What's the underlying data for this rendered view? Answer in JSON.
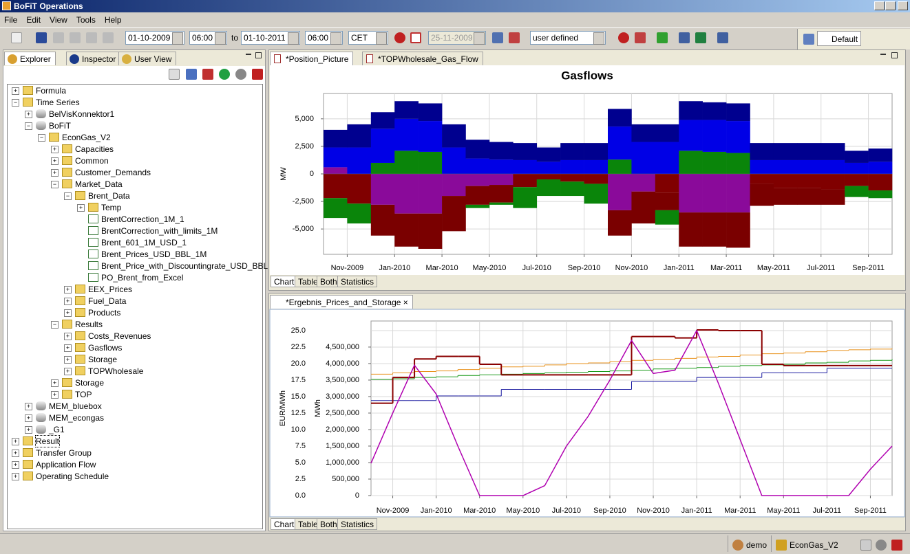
{
  "window": {
    "title": "BoFiT Operations"
  },
  "menu": [
    "File",
    "Edit",
    "View",
    "Tools",
    "Help"
  ],
  "toolbar": {
    "from_date": "01-10-2009",
    "from_time": "06:00",
    "to": "to",
    "to_date": "01-10-2011",
    "to_time": "06:00",
    "timezone": "CET",
    "date": "25-11-2009",
    "mode": "user defined",
    "perspective": "Default"
  },
  "left_tabs": [
    "Explorer",
    "Inspector",
    "User View"
  ],
  "tree": [
    "Formula",
    "Time Series",
    "BelVisKonnektor1",
    "BoFiT",
    "EconGas_V2",
    "Capacities",
    "Common",
    "Customer_Demands",
    "Market_Data",
    "Brent_Data",
    "Temp",
    "BrentCorrection_1M_1",
    "BrentCorrection_with_limits_1M",
    "Brent_601_1M_USD_1",
    "Brent_Prices_USD_BBL_1M",
    "Brent_Price_with_Discountingrate_USD_BBL",
    "PO_Brent_from_Excel",
    "EEX_Prices",
    "Fuel_Data",
    "Products",
    "Results",
    "Costs_Revenues",
    "Gasflows",
    "Storage",
    "TOPWholesale",
    "Storage",
    "TOP",
    "MEM_bluebox",
    "MEM_econgas",
    "_G1",
    "Result",
    "Transfer Group",
    "Application Flow",
    "Operating Schedule"
  ],
  "editor_tabs": [
    "*Position_Picture",
    "*TOPWholesale_Gas_Flow"
  ],
  "view_tabs": [
    "Chart",
    "Table",
    "Both",
    "Statistics"
  ],
  "bottom_tab": "*Ergebnis_Prices_and_Storage",
  "status": {
    "user": "demo",
    "project": "EconGas_V2"
  },
  "gasflow_chart": {
    "type": "stacked-area",
    "title": "Gasflows",
    "y_label": "MW",
    "grid": true,
    "categories": [
      null,
      "Nov-2009",
      null,
      "Jan-2010",
      null,
      "Mar-2010",
      null,
      "May-2010",
      null,
      "Jul-2010",
      null,
      "Sep-2010",
      null,
      "Nov-2010",
      null,
      "Jan-2011",
      null,
      "Mar-2011",
      null,
      "May-2011",
      null,
      "Jul-2011",
      null,
      "Sep-2011"
    ],
    "ylim": [
      -7300,
      7300
    ],
    "yticks": [
      {
        "value": 5000,
        "label": "5,000"
      },
      {
        "value": 2500,
        "label": "2,500"
      },
      0,
      {
        "value": -2500,
        "label": "-2,500"
      },
      {
        "value": -5000,
        "label": "-5,000"
      }
    ],
    "series": [
      {
        "color": "#8a0a9a",
        "values": [
          600,
          0,
          0,
          0,
          0,
          0,
          0,
          0,
          0,
          0,
          0,
          0,
          0,
          0,
          0,
          0,
          0,
          0,
          0,
          0,
          0,
          0,
          0,
          0
        ]
      },
      {
        "color": "#0a850a",
        "values": [
          0,
          0,
          1000,
          2100,
          2000,
          0,
          0,
          0,
          0,
          0,
          0,
          0,
          1300,
          0,
          0,
          2100,
          2000,
          1900,
          0,
          0,
          0,
          0,
          0,
          0
        ]
      },
      {
        "color": "#0000e6",
        "values": [
          1800,
          2400,
          3100,
          2900,
          2800,
          2400,
          1400,
          1300,
          1250,
          1100,
          1250,
          1250,
          3000,
          2900,
          2900,
          2800,
          2900,
          2900,
          1250,
          1250,
          1250,
          1250,
          1000,
          1100
        ]
      },
      {
        "color": "#00008f",
        "values": [
          1600,
          2100,
          1500,
          1600,
          1600,
          2100,
          1700,
          1600,
          1550,
          1300,
          1550,
          1550,
          1600,
          1600,
          1600,
          1700,
          1600,
          1600,
          1550,
          1550,
          1550,
          1550,
          1100,
          1200
        ]
      },
      {
        "color": "#800000",
        "values": [
          -2200,
          -2700,
          0,
          0,
          0,
          0,
          0,
          0,
          -1200,
          -500,
          -700,
          -900,
          0,
          0,
          -1700,
          0,
          0,
          0,
          -900,
          -1300,
          -1300,
          -1400,
          -1100,
          -1500
        ]
      },
      {
        "color": "#8a0a9a",
        "values": [
          0,
          0,
          -2800,
          -3600,
          -3600,
          -2000,
          -1100,
          -1000,
          0,
          0,
          0,
          0,
          -3300,
          -1600,
          0,
          -3500,
          -3500,
          -3500,
          0,
          0,
          0,
          0,
          0,
          0
        ]
      },
      {
        "color": "#7a0000",
        "values": [
          0,
          0,
          -2800,
          -3000,
          -3200,
          -3200,
          -1700,
          -1600,
          0,
          0,
          0,
          0,
          -2300,
          -2900,
          -1600,
          -3100,
          -3100,
          -3200,
          -2000,
          -1500,
          -1500,
          -1400,
          0,
          0
        ]
      },
      {
        "color": "#0a850a",
        "values": [
          -1800,
          -1800,
          0,
          0,
          0,
          0,
          -300,
          -200,
          -1900,
          -1500,
          -1300,
          -1800,
          0,
          0,
          -1300,
          0,
          0,
          0,
          0,
          0,
          0,
          0,
          -1000,
          -700
        ]
      }
    ]
  },
  "prices_chart": {
    "type": "line",
    "y_label": "EUR/MWh",
    "y2_label": "MWh",
    "grid": true,
    "categories": [
      null,
      "Nov-2009",
      null,
      "Jan-2010",
      null,
      "Mar-2010",
      null,
      "May-2010",
      null,
      "Jul-2010",
      null,
      "Sep-2010",
      null,
      "Nov-2010",
      null,
      "Jan-2011",
      null,
      "Mar-2011",
      null,
      "May-2011",
      null,
      "Jul-2011",
      null,
      "Sep-2011",
      null
    ],
    "ylim": [
      0,
      26.46
    ],
    "yticks": [
      {
        "value": 0,
        "label": "0.0"
      },
      {
        "value": 2.5,
        "label": "2.5"
      },
      {
        "value": 5,
        "label": "5.0"
      },
      {
        "value": 7.5,
        "label": "7.5"
      },
      {
        "value": 10,
        "label": "10.0"
      },
      {
        "value": 12.5,
        "label": "12.5"
      },
      {
        "value": 15,
        "label": "15.0"
      },
      {
        "value": 17.5,
        "label": "17.5"
      },
      {
        "value": 20,
        "label": "20.0"
      },
      {
        "value": 22.5,
        "label": "22.5"
      },
      {
        "value": 25,
        "label": "25.0"
      }
    ],
    "y2lim": [
      0,
      5290000
    ],
    "y2ticks": [
      0,
      {
        "value": 500000,
        "label": "500,000"
      },
      {
        "value": 1000000,
        "label": "1,000,000"
      },
      {
        "value": 1500000,
        "label": "1,500,000"
      },
      {
        "value": 2000000,
        "label": "2,000,000"
      },
      {
        "value": 2500000,
        "label": "2,500,000"
      },
      {
        "value": 3000000,
        "label": "3,000,000"
      },
      {
        "value": 3500000,
        "label": "3,500,000"
      },
      {
        "value": 4000000,
        "label": "4,000,000"
      },
      {
        "value": 4500000,
        "label": "4,500,000"
      }
    ],
    "series": [
      {
        "color": "#e8901a",
        "step": true,
        "values": [
          18.4,
          18.6,
          18.8,
          18.9,
          19.1,
          19.3,
          19.5,
          19.6,
          19.8,
          20.0,
          20.1,
          20.3,
          20.5,
          20.6,
          20.8,
          21.0,
          21.1,
          21.3,
          21.5,
          21.6,
          21.8,
          22.0,
          22.1,
          22.2,
          22.3
        ]
      },
      {
        "color": "#1a9a1a",
        "step": true,
        "values": [
          17.6,
          17.7,
          17.9,
          18.0,
          18.2,
          18.3,
          18.4,
          18.5,
          18.6,
          18.7,
          18.8,
          18.9,
          19.0,
          19.2,
          19.3,
          19.4,
          19.6,
          19.7,
          19.8,
          19.9,
          20.1,
          20.2,
          20.4,
          20.5,
          20.7
        ]
      },
      {
        "color": "#1a1aa0",
        "step": true,
        "values": [
          14.4,
          14.4,
          14.4,
          15.1,
          15.1,
          15.1,
          16.1,
          16.1,
          16.1,
          16.1,
          16.1,
          16.1,
          17.3,
          17.3,
          17.3,
          17.9,
          17.9,
          17.9,
          18.6,
          18.6,
          18.6,
          19.3,
          19.3,
          19.3,
          19.3
        ]
      },
      {
        "color": "#8b0000",
        "step": true,
        "values": [
          14.0,
          17.9,
          20.7,
          21.1,
          21.1,
          19.9,
          18.3,
          18.3,
          18.3,
          18.3,
          18.3,
          18.3,
          24.1,
          24.1,
          23.9,
          25.1,
          25.0,
          25.0,
          19.9,
          19.7,
          19.7,
          19.7,
          19.7,
          19.7,
          19.7
        ]
      },
      {
        "color": "#b000b0",
        "axis": "y2",
        "values": [
          980000,
          2500000,
          3950000,
          3080000,
          1500000,
          0,
          0,
          0,
          300000,
          1500000,
          2400000,
          3500000,
          4700000,
          3700000,
          3800000,
          5000000,
          3400000,
          1700000,
          0,
          0,
          0,
          0,
          0,
          800000,
          1500000
        ]
      }
    ]
  }
}
